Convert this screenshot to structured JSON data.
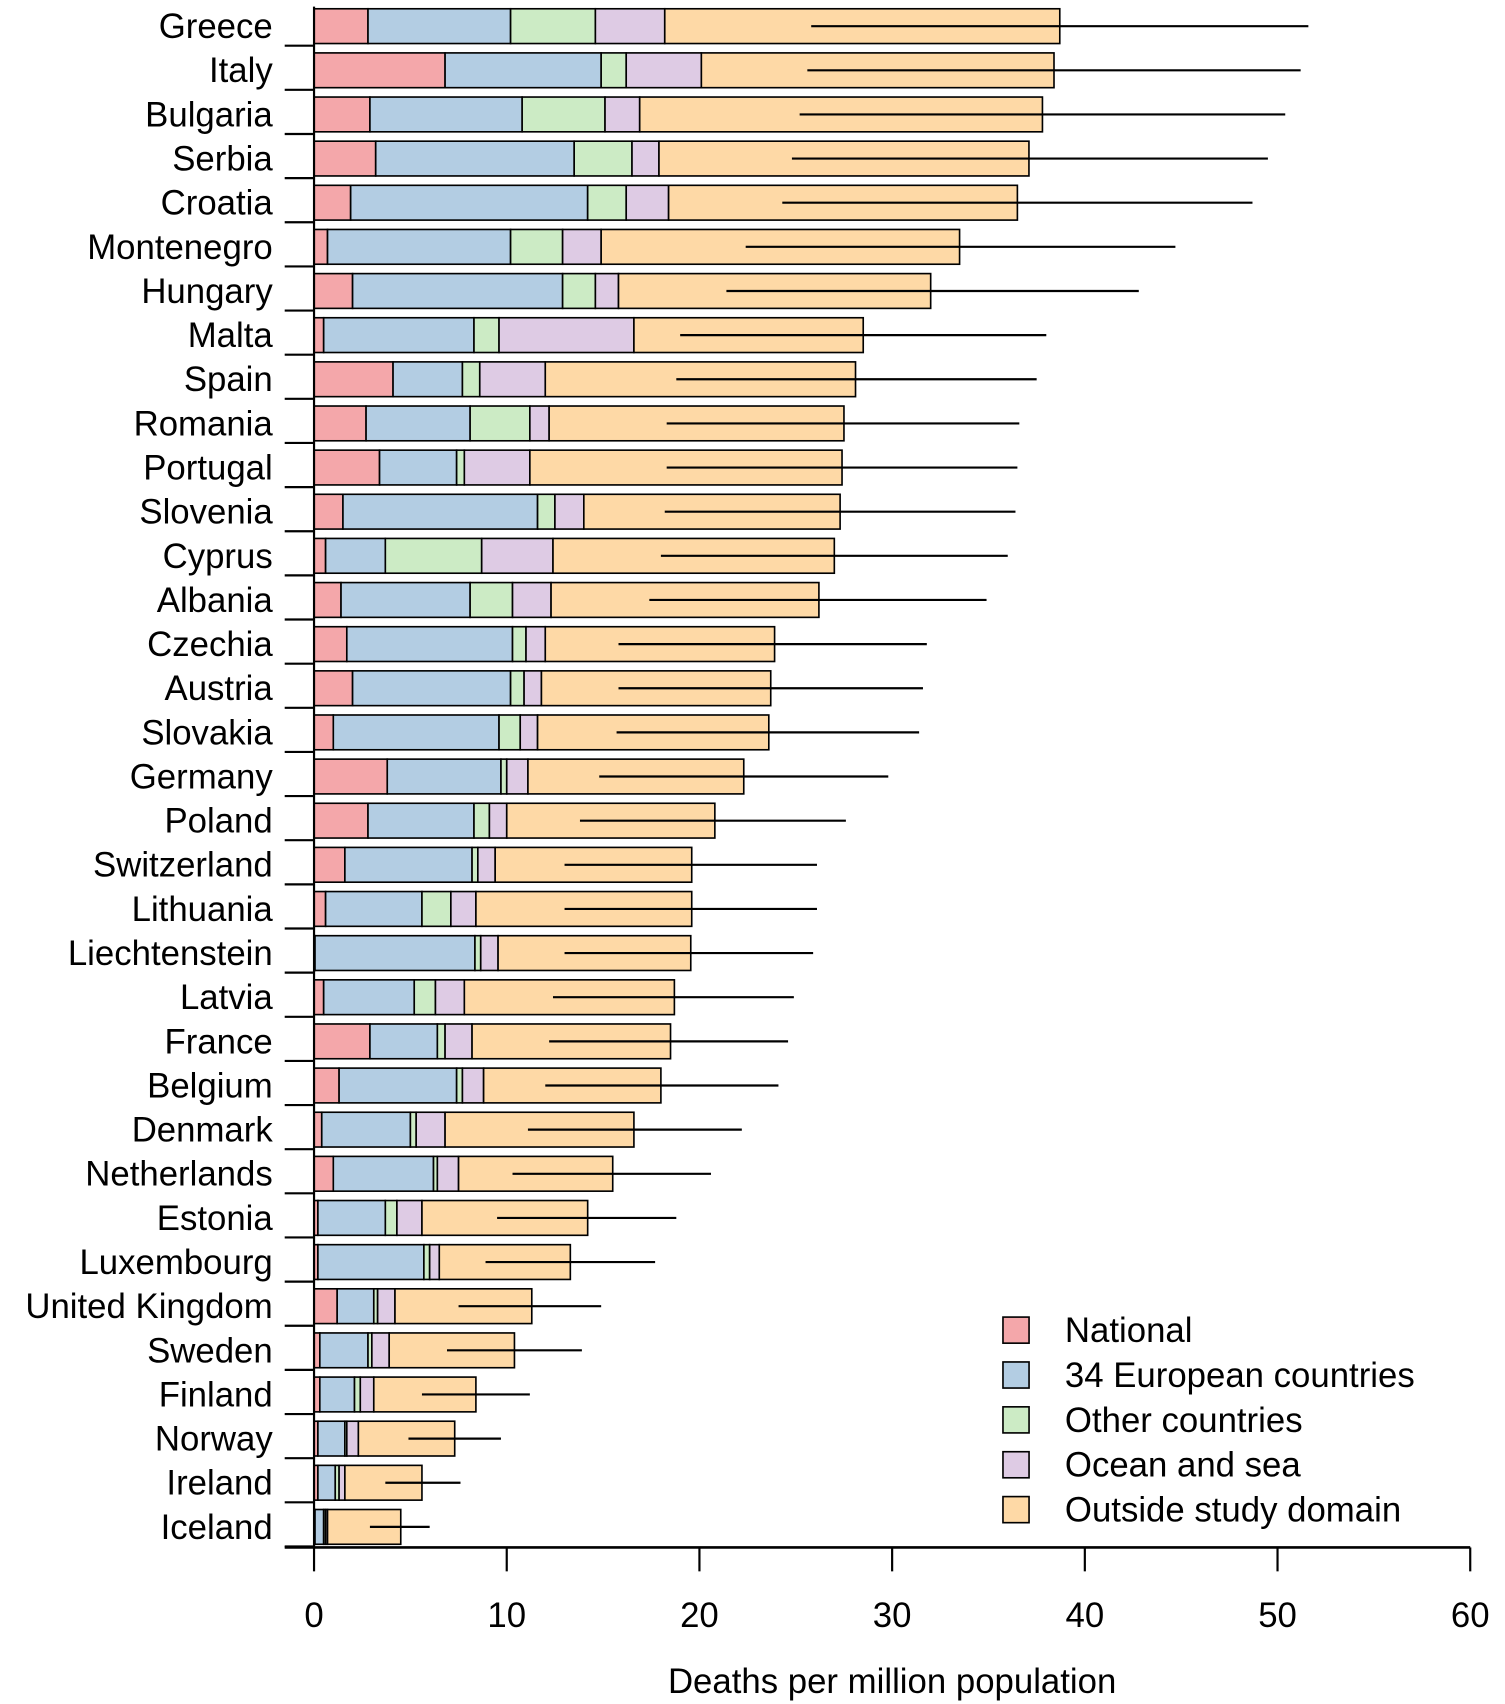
{
  "chart_data": {
    "type": "bar",
    "orientation": "horizontal",
    "stacked": true,
    "xlabel": "Deaths per million population",
    "ylabel": "",
    "xlim": [
      0,
      60
    ],
    "xticks": [
      0,
      10,
      20,
      30,
      40,
      50,
      60
    ],
    "grid": false,
    "legend_position": "bottom-right",
    "categories": [
      "Greece",
      "Italy",
      "Bulgaria",
      "Serbia",
      "Croatia",
      "Montenegro",
      "Hungary",
      "Malta",
      "Spain",
      "Romania",
      "Portugal",
      "Slovenia",
      "Cyprus",
      "Albania",
      "Czechia",
      "Austria",
      "Slovakia",
      "Germany",
      "Poland",
      "Switzerland",
      "Lithuania",
      "Liechtenstein",
      "Latvia",
      "France",
      "Belgium",
      "Denmark",
      "Netherlands",
      "Estonia",
      "Luxembourg",
      "United Kingdom",
      "Sweden",
      "Finland",
      "Norway",
      "Ireland",
      "Iceland"
    ],
    "series": [
      {
        "name": "National",
        "color": "#F4A7AA",
        "values": [
          2.8,
          6.8,
          2.9,
          3.2,
          1.9,
          0.7,
          2.0,
          0.5,
          4.1,
          2.7,
          3.4,
          1.5,
          0.6,
          1.4,
          1.7,
          2.0,
          1.0,
          3.8,
          2.8,
          1.6,
          0.6,
          0.05,
          0.5,
          2.9,
          1.3,
          0.4,
          1.0,
          0.2,
          0.2,
          1.2,
          0.3,
          0.3,
          0.2,
          0.2,
          0.05
        ]
      },
      {
        "name": "34 European countries",
        "color": "#B3CDE3",
        "values": [
          7.4,
          8.1,
          7.9,
          10.3,
          12.3,
          9.5,
          10.9,
          7.8,
          3.6,
          5.4,
          4.0,
          10.1,
          3.1,
          6.7,
          8.6,
          8.2,
          8.6,
          5.9,
          5.5,
          6.6,
          5.0,
          8.3,
          4.7,
          3.5,
          6.1,
          4.6,
          5.2,
          3.5,
          5.5,
          1.9,
          2.5,
          1.8,
          1.4,
          0.9,
          0.45
        ]
      },
      {
        "name": "Other countries",
        "color": "#CCEBC5",
        "values": [
          4.4,
          1.3,
          4.3,
          3.0,
          2.0,
          2.7,
          1.7,
          1.3,
          0.9,
          3.1,
          0.4,
          0.9,
          5.0,
          2.2,
          0.7,
          0.7,
          1.1,
          0.3,
          0.8,
          0.3,
          1.5,
          0.3,
          1.1,
          0.4,
          0.3,
          0.3,
          0.2,
          0.6,
          0.3,
          0.2,
          0.2,
          0.3,
          0.1,
          0.2,
          0.1
        ]
      },
      {
        "name": "Ocean and sea",
        "color": "#DECBE4",
        "values": [
          3.6,
          3.9,
          1.8,
          1.4,
          2.2,
          2.0,
          1.2,
          7.0,
          3.4,
          1.0,
          3.4,
          1.5,
          3.7,
          2.0,
          1.0,
          0.9,
          0.9,
          1.1,
          0.9,
          0.9,
          1.3,
          0.9,
          1.5,
          1.4,
          1.1,
          1.5,
          1.1,
          1.3,
          0.5,
          0.9,
          0.9,
          0.7,
          0.6,
          0.3,
          0.1
        ]
      },
      {
        "name": "Outside study domain",
        "color": "#FED9A6",
        "values": [
          20.5,
          18.3,
          20.9,
          19.2,
          18.1,
          18.6,
          16.2,
          11.9,
          16.1,
          15.3,
          16.2,
          13.3,
          14.6,
          13.9,
          11.9,
          11.9,
          12.0,
          11.2,
          10.8,
          10.2,
          11.2,
          10.0,
          10.9,
          10.3,
          9.2,
          9.8,
          8.0,
          8.6,
          6.8,
          7.1,
          6.5,
          5.3,
          5.0,
          4.0,
          3.8
        ]
      }
    ],
    "error_bars": {
      "low": [
        25.8,
        25.6,
        25.2,
        24.8,
        24.3,
        22.4,
        21.4,
        19.0,
        18.8,
        18.3,
        18.3,
        18.2,
        18.0,
        17.4,
        15.8,
        15.8,
        15.7,
        14.8,
        13.8,
        13.0,
        13.0,
        13.0,
        12.4,
        12.2,
        12.0,
        11.1,
        10.3,
        9.5,
        8.9,
        7.5,
        6.9,
        5.6,
        4.9,
        3.7,
        2.9
      ],
      "high": [
        51.6,
        51.2,
        50.4,
        49.5,
        48.7,
        44.7,
        42.8,
        38.0,
        37.5,
        36.6,
        36.5,
        36.4,
        36.0,
        34.9,
        31.8,
        31.6,
        31.4,
        29.8,
        27.6,
        26.1,
        26.1,
        25.9,
        24.9,
        24.6,
        24.1,
        22.2,
        20.6,
        18.8,
        17.7,
        14.9,
        13.9,
        11.2,
        9.7,
        7.6,
        6.0
      ]
    }
  }
}
